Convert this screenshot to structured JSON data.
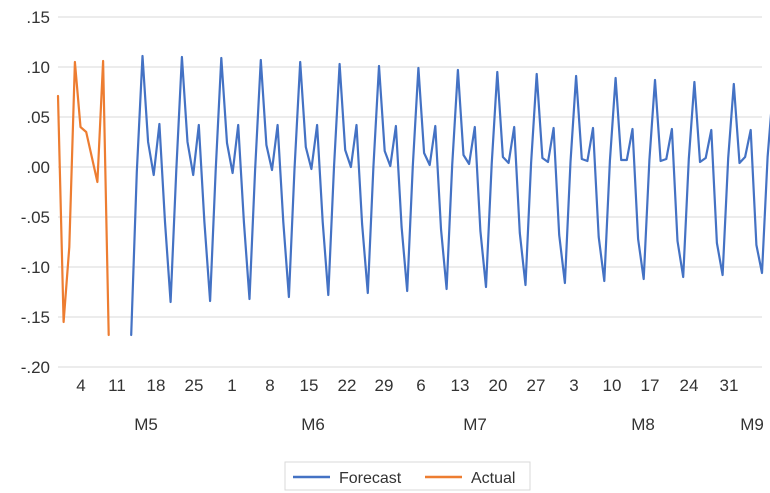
{
  "chart_data": {
    "type": "line",
    "title": "",
    "xlabel": "",
    "ylabel": "",
    "ylim": [
      -0.2,
      0.15
    ],
    "yticks": [
      0.15,
      0.1,
      0.05,
      0.0,
      -0.05,
      -0.1,
      -0.15,
      -0.2
    ],
    "ytick_labels": [
      ".15",
      ".10",
      ".05",
      ".00",
      "-.05",
      "-.10",
      "-.15",
      "-.20"
    ],
    "grid": true,
    "legend_position": "bottom",
    "x_start": "M5 1",
    "x_end": "M9 3",
    "xtick_labels": [
      "4",
      "11",
      "18",
      "25",
      "1",
      "8",
      "15",
      "22",
      "29",
      "6",
      "13",
      "20",
      "27",
      "3",
      "10",
      "17",
      "24",
      "31"
    ],
    "month_labels": [
      "M5",
      "M6",
      "M7",
      "M8",
      "M9"
    ],
    "series": [
      {
        "name": "Forecast",
        "color": "#4472C4",
        "values": [
          -0.168,
          -0.005,
          0.111,
          0.025,
          -0.008,
          0.043,
          -0.055,
          -0.135,
          -0.003,
          0.11,
          0.025,
          -0.008,
          0.042,
          -0.055,
          -0.134,
          -0.003,
          0.109,
          0.024,
          -0.006,
          0.042,
          -0.055,
          -0.132,
          -0.003,
          0.107,
          0.022,
          -0.003,
          0.042,
          -0.055,
          -0.13,
          -0.002,
          0.105,
          0.02,
          -0.002,
          0.042,
          -0.055,
          -0.128,
          0.0,
          0.103,
          0.017,
          0.0,
          0.042,
          -0.057,
          -0.126,
          0.0,
          0.101,
          0.016,
          0.001,
          0.041,
          -0.06,
          -0.124,
          0.001,
          0.099,
          0.014,
          0.002,
          0.041,
          -0.062,
          -0.122,
          0.002,
          0.097,
          0.012,
          0.003,
          0.04,
          -0.064,
          -0.12,
          0.003,
          0.095,
          0.01,
          0.004,
          0.04,
          -0.066,
          -0.118,
          0.004,
          0.093,
          0.009,
          0.005,
          0.039,
          -0.068,
          -0.116,
          0.005,
          0.091,
          0.008,
          0.006,
          0.039,
          -0.07,
          -0.114,
          0.006,
          0.089,
          0.007,
          0.007,
          0.038,
          -0.072,
          -0.112,
          0.007,
          0.087,
          0.006,
          0.008,
          0.038,
          -0.074,
          -0.11,
          0.008,
          0.085,
          0.005,
          0.009,
          0.037,
          -0.076,
          -0.108,
          0.009,
          0.083,
          0.004,
          0.01,
          0.037,
          -0.078,
          -0.106,
          0.01,
          0.081,
          0.003,
          0.012,
          0.035,
          -0.08,
          -0.1,
          0.041
        ]
      },
      {
        "name": "Actual",
        "color": "#ED7D31",
        "values": [
          0.071,
          -0.155,
          -0.08,
          0.105,
          0.04,
          0.035,
          0.01,
          -0.015,
          0.106,
          -0.168
        ]
      }
    ]
  }
}
